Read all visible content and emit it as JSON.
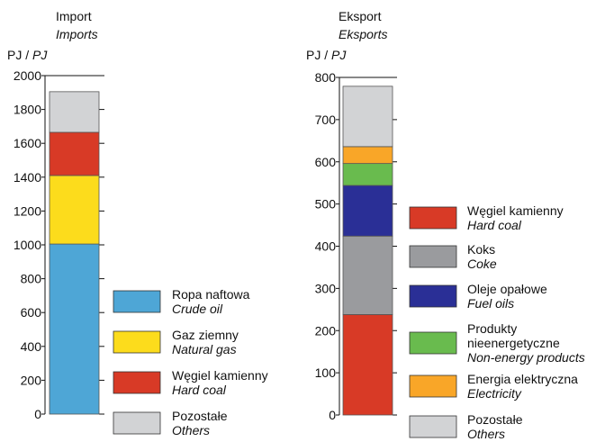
{
  "chart_data": [
    {
      "type": "bar",
      "stacked": true,
      "title": "Import",
      "subtitle": "Imports",
      "unit": "PJ",
      "unit_en": "PJ",
      "ylim": [
        0,
        2000
      ],
      "yticks": [
        0,
        200,
        400,
        600,
        800,
        1000,
        1200,
        1400,
        1600,
        1800,
        2000
      ],
      "series": [
        {
          "name": "Ropa naftowa",
          "name_en": "Crude oil",
          "value": 1005,
          "color": "#4ea6d6"
        },
        {
          "name": "Gaz ziemny",
          "name_en": "Natural gas",
          "value": 405,
          "color": "#fcdc1c"
        },
        {
          "name": "Węgiel kamienny",
          "name_en": "Hard coal",
          "value": 255,
          "color": "#d83a26"
        },
        {
          "name": "Pozostałe",
          "name_en": "Others",
          "value": 240,
          "color": "#d2d3d5"
        }
      ]
    },
    {
      "type": "bar",
      "stacked": true,
      "title": "Eksport",
      "subtitle": "Eksports",
      "unit": "PJ",
      "unit_en": "PJ",
      "ylim": [
        0,
        800
      ],
      "yticks": [
        0,
        100,
        200,
        300,
        400,
        500,
        600,
        700,
        800
      ],
      "series": [
        {
          "name": "Węgiel kamienny",
          "name_en": "Hard coal",
          "value": 238,
          "color": "#d83a26"
        },
        {
          "name": "Koks",
          "name_en": "Coke",
          "value": 186,
          "color": "#9a9b9e"
        },
        {
          "name": "Oleje opałowe",
          "name_en": "Fuel oils",
          "value": 120,
          "color": "#2a2f96"
        },
        {
          "name": "Produkty nieenergetyczne",
          "name_lines": [
            "Produkty",
            "nieenergetyczne"
          ],
          "name_en": "Non-energy products",
          "value": 52,
          "color": "#69bb4e"
        },
        {
          "name": "Energia elektryczna",
          "name_en": "Electricity",
          "value": 40,
          "color": "#f9a628"
        },
        {
          "name": "Pozostałe",
          "name_en": "Others",
          "value": 143,
          "color": "#d2d3d5"
        }
      ]
    }
  ]
}
